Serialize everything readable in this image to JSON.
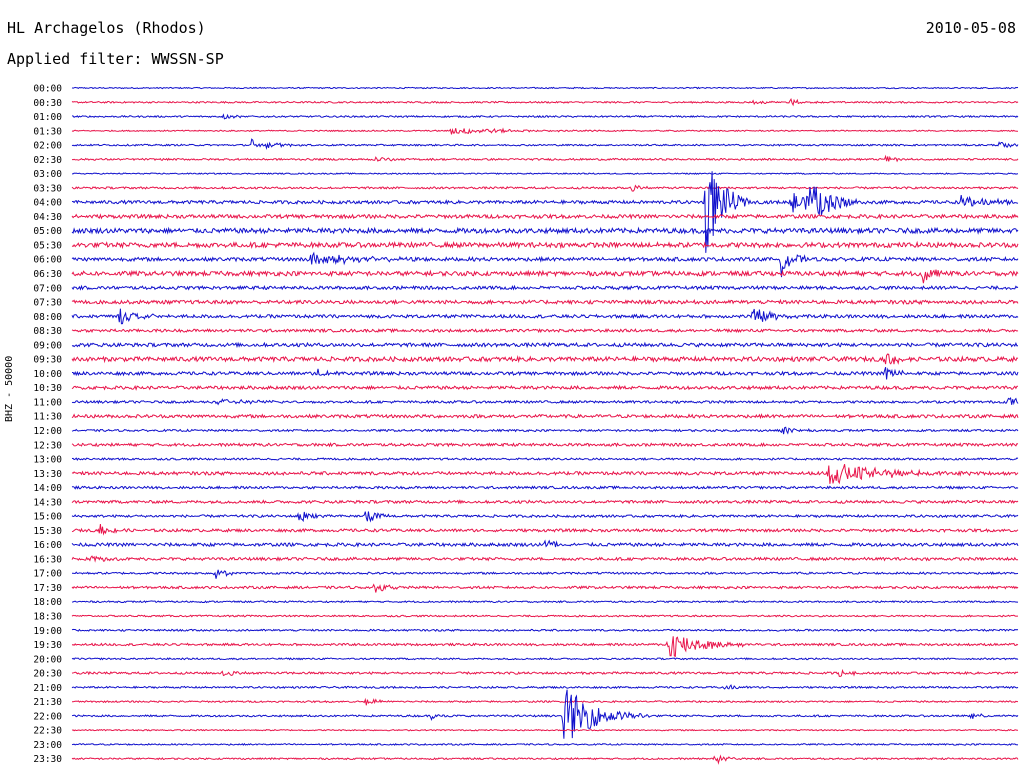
{
  "header": {
    "station": "HL Archagelos (Rhodos)",
    "date": "2010-05-08",
    "filter_label": "Applied filter:",
    "filter_value": "WWSSN-SP"
  },
  "colors": {
    "even_trace": "#1010cc",
    "odd_trace": "#e8144a"
  },
  "chart_data": {
    "type": "line",
    "ylabel": "BHZ - 50000",
    "time_labels": [
      "00:00",
      "00:30",
      "01:00",
      "01:30",
      "02:00",
      "02:30",
      "03:00",
      "03:30",
      "04:00",
      "04:30",
      "05:00",
      "05:30",
      "06:00",
      "06:30",
      "07:00",
      "07:30",
      "08:00",
      "08:30",
      "09:00",
      "09:30",
      "10:00",
      "10:30",
      "11:00",
      "11:30",
      "12:00",
      "12:30",
      "13:00",
      "13:30",
      "14:00",
      "14:30",
      "15:00",
      "15:30",
      "16:00",
      "16:30",
      "17:00",
      "17:30",
      "18:00",
      "18:30",
      "19:00",
      "19:30",
      "20:00",
      "20:30",
      "21:00",
      "21:30",
      "22:00",
      "22:30",
      "23:00",
      "23:30"
    ],
    "noise_level": [
      0.6,
      0.8,
      0.8,
      0.6,
      0.8,
      0.9,
      0.6,
      1.0,
      1.6,
      1.8,
      2.4,
      2.4,
      1.8,
      2.2,
      1.6,
      1.8,
      1.6,
      1.4,
      1.8,
      2.2,
      1.6,
      1.6,
      1.2,
      1.6,
      1.0,
      1.4,
      1.0,
      1.6,
      1.2,
      1.4,
      1.2,
      1.4,
      1.6,
      1.4,
      1.0,
      1.2,
      0.8,
      0.8,
      0.9,
      1.1,
      0.8,
      1.1,
      0.9,
      0.8,
      0.9,
      0.6,
      0.7,
      0.8
    ],
    "events": [
      {
        "row": 1,
        "t": 0.72,
        "amp": 3,
        "dur": 0.01
      },
      {
        "row": 1,
        "t": 0.76,
        "amp": 3,
        "dur": 0.01
      },
      {
        "row": 2,
        "t": 0.16,
        "amp": 3,
        "dur": 0.01
      },
      {
        "row": 3,
        "t": 0.4,
        "amp": 4,
        "dur": 0.05
      },
      {
        "row": 4,
        "t": 0.19,
        "amp": 6,
        "dur": 0.02
      },
      {
        "row": 4,
        "t": 0.98,
        "amp": 3,
        "dur": 0.02
      },
      {
        "row": 5,
        "t": 0.32,
        "amp": 4,
        "dur": 0.01
      },
      {
        "row": 5,
        "t": 0.86,
        "amp": 4,
        "dur": 0.01
      },
      {
        "row": 7,
        "t": 0.59,
        "amp": 4,
        "dur": 0.01
      },
      {
        "row": 8,
        "t": 0.67,
        "amp": 55,
        "dur": 0.015
      },
      {
        "row": 8,
        "t": 0.76,
        "amp": 14,
        "dur": 0.02
      },
      {
        "row": 8,
        "t": 0.78,
        "amp": 24,
        "dur": 0.02
      },
      {
        "row": 8,
        "t": 0.94,
        "amp": 6,
        "dur": 0.03
      },
      {
        "row": 12,
        "t": 0.25,
        "amp": 7,
        "dur": 0.04
      },
      {
        "row": 12,
        "t": 0.75,
        "amp": 18,
        "dur": 0.01
      },
      {
        "row": 13,
        "t": 0.9,
        "amp": 12,
        "dur": 0.01
      },
      {
        "row": 16,
        "t": 0.05,
        "amp": 8,
        "dur": 0.02
      },
      {
        "row": 16,
        "t": 0.72,
        "amp": 9,
        "dur": 0.02
      },
      {
        "row": 19,
        "t": 0.86,
        "amp": 10,
        "dur": 0.01
      },
      {
        "row": 20,
        "t": 0.26,
        "amp": 6,
        "dur": 0.01
      },
      {
        "row": 20,
        "t": 0.86,
        "amp": 8,
        "dur": 0.01
      },
      {
        "row": 22,
        "t": 0.15,
        "amp": 4,
        "dur": 0.03
      },
      {
        "row": 22,
        "t": 0.99,
        "amp": 6,
        "dur": 0.01
      },
      {
        "row": 24,
        "t": 0.75,
        "amp": 6,
        "dur": 0.01
      },
      {
        "row": 27,
        "t": 0.8,
        "amp": 12,
        "dur": 0.05
      },
      {
        "row": 30,
        "t": 0.24,
        "amp": 8,
        "dur": 0.01
      },
      {
        "row": 30,
        "t": 0.31,
        "amp": 8,
        "dur": 0.01
      },
      {
        "row": 31,
        "t": 0.03,
        "amp": 6,
        "dur": 0.01
      },
      {
        "row": 32,
        "t": 0.5,
        "amp": 6,
        "dur": 0.01
      },
      {
        "row": 33,
        "t": 0.02,
        "amp": 5,
        "dur": 0.01
      },
      {
        "row": 34,
        "t": 0.15,
        "amp": 6,
        "dur": 0.01
      },
      {
        "row": 35,
        "t": 0.32,
        "amp": 6,
        "dur": 0.01
      },
      {
        "row": 39,
        "t": 0.63,
        "amp": 16,
        "dur": 0.03
      },
      {
        "row": 41,
        "t": 0.16,
        "amp": 4,
        "dur": 0.01
      },
      {
        "row": 41,
        "t": 0.81,
        "amp": 4,
        "dur": 0.01
      },
      {
        "row": 42,
        "t": 0.69,
        "amp": 4,
        "dur": 0.01
      },
      {
        "row": 43,
        "t": 0.31,
        "amp": 4,
        "dur": 0.01
      },
      {
        "row": 44,
        "t": 0.52,
        "amp": 30,
        "dur": 0.03
      },
      {
        "row": 44,
        "t": 0.38,
        "amp": 3,
        "dur": 0.01
      },
      {
        "row": 44,
        "t": 0.95,
        "amp": 3,
        "dur": 0.01
      },
      {
        "row": 47,
        "t": 0.68,
        "amp": 5,
        "dur": 0.01
      }
    ]
  }
}
